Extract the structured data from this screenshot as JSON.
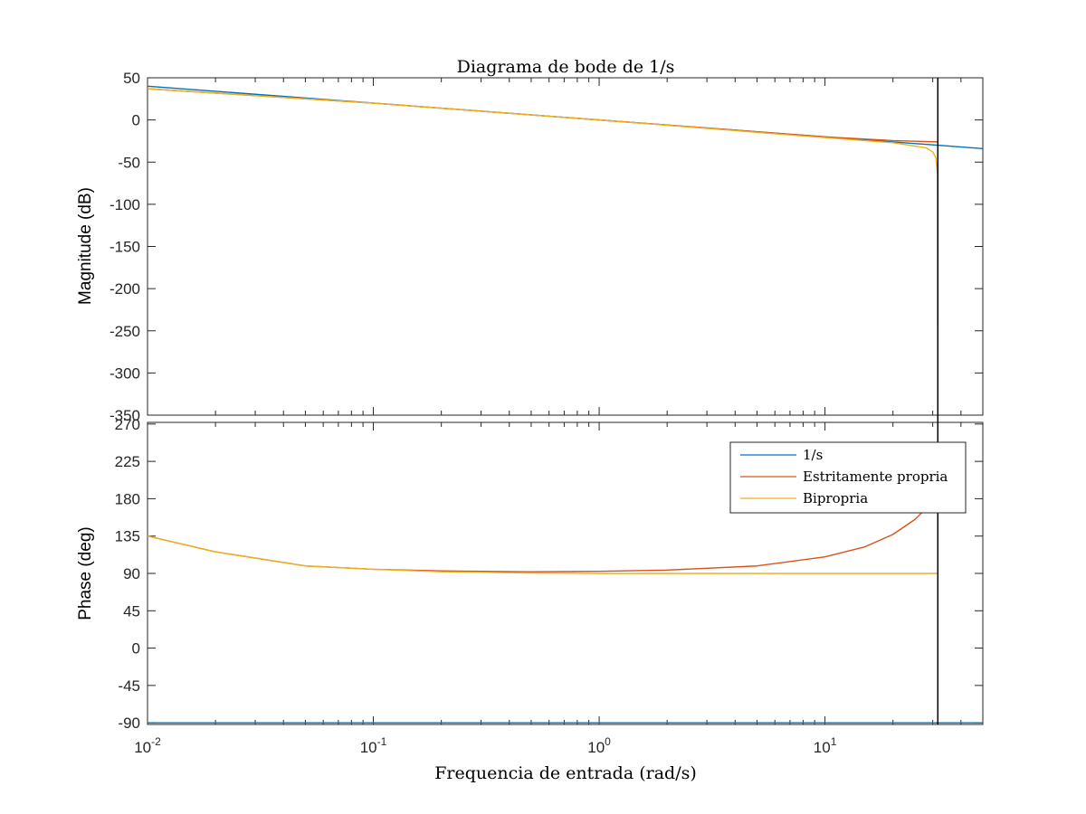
{
  "chart_data": {
    "type": "line",
    "title": "Diagrama de bode de 1/s",
    "xlabel": "Frequencia de entrada (rad/s)",
    "x_scale": "log",
    "xlim": [
      0.01,
      50
    ],
    "x_ticks": [
      {
        "value": 0.01,
        "base": "10",
        "exp": "-2"
      },
      {
        "value": 0.1,
        "base": "10",
        "exp": "-1"
      },
      {
        "value": 1,
        "base": "10",
        "exp": "0"
      },
      {
        "value": 10,
        "base": "10",
        "exp": "1"
      }
    ],
    "vertical_marker_x": 31.6,
    "grid": false,
    "legend": {
      "placement": "top-right of phase plot",
      "entries": [
        {
          "label": "1/s",
          "color": "#0072BD"
        },
        {
          "label": "Estritamente propria",
          "color": "#D95319"
        },
        {
          "label": "Bipropria",
          "color": "#EDB120"
        }
      ]
    },
    "subplots": [
      {
        "id": "magnitude",
        "ylabel": "Magnitude (dB)",
        "ylim": [
          -350,
          50
        ],
        "y_ticks": [
          "50",
          "0",
          "-50",
          "-100",
          "-150",
          "-200",
          "-250",
          "-300",
          "-350"
        ],
        "y_tick_values": [
          50,
          0,
          -50,
          -100,
          -150,
          -200,
          -250,
          -300,
          -350
        ],
        "series": [
          {
            "name": "1/s",
            "color": "#0072BD",
            "x": [
              0.01,
              0.1,
              1,
              10,
              31.6,
              50
            ],
            "y": [
              40,
              20,
              0,
              -20,
              -30,
              -34
            ]
          },
          {
            "name": "Estritamente propria",
            "color": "#D95319",
            "x": [
              0.01,
              0.1,
              1,
              10,
              20,
              31.6
            ],
            "y": [
              37,
              19.9,
              0,
              -20,
              -24.5,
              -26
            ]
          },
          {
            "name": "Bipropria",
            "color": "#EDB120",
            "x": [
              0.01,
              0.1,
              1,
              10,
              20,
              28,
              30,
              31,
              31.5,
              31.6
            ],
            "y": [
              37,
              19.9,
              0,
              -21,
              -27,
              -33,
              -38,
              -45,
              -65,
              -350
            ]
          }
        ]
      },
      {
        "id": "phase",
        "ylabel": "Phase (deg)",
        "ylim": [
          -92,
          272
        ],
        "y_ticks": [
          "270",
          "225",
          "180",
          "135",
          "90",
          "45",
          "0",
          "-45",
          "-90"
        ],
        "y_tick_values": [
          270,
          225,
          180,
          135,
          90,
          45,
          0,
          -45,
          -90
        ],
        "series": [
          {
            "name": "1/s",
            "color": "#0072BD",
            "x": [
              0.01,
              50
            ],
            "y": [
              -90,
              -90
            ]
          },
          {
            "name": "Estritamente propria",
            "color": "#D95319",
            "x": [
              0.01,
              0.02,
              0.05,
              0.1,
              0.2,
              0.5,
              1,
              2,
              5,
              10,
              15,
              20,
              25,
              28,
              31.6
            ],
            "y": [
              135,
              116,
              99,
              95,
              93,
              92,
              92.5,
              94,
              99,
              110,
              122,
              137,
              155,
              168,
              180
            ]
          },
          {
            "name": "Bipropria",
            "color": "#EDB120",
            "x": [
              0.01,
              0.02,
              0.05,
              0.1,
              0.2,
              0.5,
              1,
              10,
              31.6
            ],
            "y": [
              135,
              116,
              99,
              95,
              92,
              90.5,
              90,
              90,
              90
            ]
          }
        ]
      }
    ]
  }
}
